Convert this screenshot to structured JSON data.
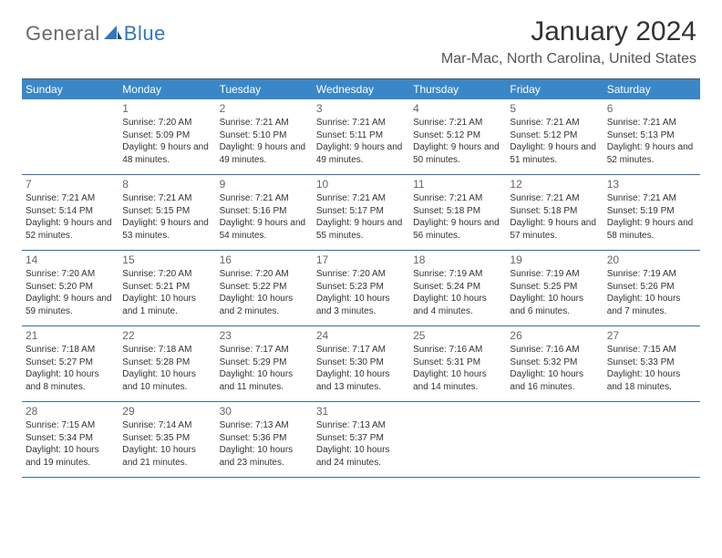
{
  "colors": {
    "header_bg": "#3a87c8",
    "header_text": "#ffffff",
    "week_divider": "#3a6fa0",
    "top_rule": "#5a5a5a",
    "body_text": "#333333",
    "daynum_text": "#666666",
    "logo_grey": "#6a6a6a",
    "logo_blue": "#2f78bd",
    "background": "#ffffff"
  },
  "fonts": {
    "month_title_size": 30,
    "location_size": 16,
    "day_header_size": 12,
    "daynum_size": 12,
    "cell_text_size": 10,
    "logo_size": 22
  },
  "logo": {
    "part1": "General",
    "part2": "Blue"
  },
  "title": "January 2024",
  "location": "Mar-Mac, North Carolina, United States",
  "day_headers": [
    "Sunday",
    "Monday",
    "Tuesday",
    "Wednesday",
    "Thursday",
    "Friday",
    "Saturday"
  ],
  "weeks": [
    [
      {
        "num": "",
        "lines": []
      },
      {
        "num": "1",
        "lines": [
          "Sunrise: 7:20 AM",
          "Sunset: 5:09 PM",
          "Daylight: 9 hours and 48 minutes."
        ]
      },
      {
        "num": "2",
        "lines": [
          "Sunrise: 7:21 AM",
          "Sunset: 5:10 PM",
          "Daylight: 9 hours and 49 minutes."
        ]
      },
      {
        "num": "3",
        "lines": [
          "Sunrise: 7:21 AM",
          "Sunset: 5:11 PM",
          "Daylight: 9 hours and 49 minutes."
        ]
      },
      {
        "num": "4",
        "lines": [
          "Sunrise: 7:21 AM",
          "Sunset: 5:12 PM",
          "Daylight: 9 hours and 50 minutes."
        ]
      },
      {
        "num": "5",
        "lines": [
          "Sunrise: 7:21 AM",
          "Sunset: 5:12 PM",
          "Daylight: 9 hours and 51 minutes."
        ]
      },
      {
        "num": "6",
        "lines": [
          "Sunrise: 7:21 AM",
          "Sunset: 5:13 PM",
          "Daylight: 9 hours and 52 minutes."
        ]
      }
    ],
    [
      {
        "num": "7",
        "lines": [
          "Sunrise: 7:21 AM",
          "Sunset: 5:14 PM",
          "Daylight: 9 hours and 52 minutes."
        ]
      },
      {
        "num": "8",
        "lines": [
          "Sunrise: 7:21 AM",
          "Sunset: 5:15 PM",
          "Daylight: 9 hours and 53 minutes."
        ]
      },
      {
        "num": "9",
        "lines": [
          "Sunrise: 7:21 AM",
          "Sunset: 5:16 PM",
          "Daylight: 9 hours and 54 minutes."
        ]
      },
      {
        "num": "10",
        "lines": [
          "Sunrise: 7:21 AM",
          "Sunset: 5:17 PM",
          "Daylight: 9 hours and 55 minutes."
        ]
      },
      {
        "num": "11",
        "lines": [
          "Sunrise: 7:21 AM",
          "Sunset: 5:18 PM",
          "Daylight: 9 hours and 56 minutes."
        ]
      },
      {
        "num": "12",
        "lines": [
          "Sunrise: 7:21 AM",
          "Sunset: 5:18 PM",
          "Daylight: 9 hours and 57 minutes."
        ]
      },
      {
        "num": "13",
        "lines": [
          "Sunrise: 7:21 AM",
          "Sunset: 5:19 PM",
          "Daylight: 9 hours and 58 minutes."
        ]
      }
    ],
    [
      {
        "num": "14",
        "lines": [
          "Sunrise: 7:20 AM",
          "Sunset: 5:20 PM",
          "Daylight: 9 hours and 59 minutes."
        ]
      },
      {
        "num": "15",
        "lines": [
          "Sunrise: 7:20 AM",
          "Sunset: 5:21 PM",
          "Daylight: 10 hours and 1 minute."
        ]
      },
      {
        "num": "16",
        "lines": [
          "Sunrise: 7:20 AM",
          "Sunset: 5:22 PM",
          "Daylight: 10 hours and 2 minutes."
        ]
      },
      {
        "num": "17",
        "lines": [
          "Sunrise: 7:20 AM",
          "Sunset: 5:23 PM",
          "Daylight: 10 hours and 3 minutes."
        ]
      },
      {
        "num": "18",
        "lines": [
          "Sunrise: 7:19 AM",
          "Sunset: 5:24 PM",
          "Daylight: 10 hours and 4 minutes."
        ]
      },
      {
        "num": "19",
        "lines": [
          "Sunrise: 7:19 AM",
          "Sunset: 5:25 PM",
          "Daylight: 10 hours and 6 minutes."
        ]
      },
      {
        "num": "20",
        "lines": [
          "Sunrise: 7:19 AM",
          "Sunset: 5:26 PM",
          "Daylight: 10 hours and 7 minutes."
        ]
      }
    ],
    [
      {
        "num": "21",
        "lines": [
          "Sunrise: 7:18 AM",
          "Sunset: 5:27 PM",
          "Daylight: 10 hours and 8 minutes."
        ]
      },
      {
        "num": "22",
        "lines": [
          "Sunrise: 7:18 AM",
          "Sunset: 5:28 PM",
          "Daylight: 10 hours and 10 minutes."
        ]
      },
      {
        "num": "23",
        "lines": [
          "Sunrise: 7:17 AM",
          "Sunset: 5:29 PM",
          "Daylight: 10 hours and 11 minutes."
        ]
      },
      {
        "num": "24",
        "lines": [
          "Sunrise: 7:17 AM",
          "Sunset: 5:30 PM",
          "Daylight: 10 hours and 13 minutes."
        ]
      },
      {
        "num": "25",
        "lines": [
          "Sunrise: 7:16 AM",
          "Sunset: 5:31 PM",
          "Daylight: 10 hours and 14 minutes."
        ]
      },
      {
        "num": "26",
        "lines": [
          "Sunrise: 7:16 AM",
          "Sunset: 5:32 PM",
          "Daylight: 10 hours and 16 minutes."
        ]
      },
      {
        "num": "27",
        "lines": [
          "Sunrise: 7:15 AM",
          "Sunset: 5:33 PM",
          "Daylight: 10 hours and 18 minutes."
        ]
      }
    ],
    [
      {
        "num": "28",
        "lines": [
          "Sunrise: 7:15 AM",
          "Sunset: 5:34 PM",
          "Daylight: 10 hours and 19 minutes."
        ]
      },
      {
        "num": "29",
        "lines": [
          "Sunrise: 7:14 AM",
          "Sunset: 5:35 PM",
          "Daylight: 10 hours and 21 minutes."
        ]
      },
      {
        "num": "30",
        "lines": [
          "Sunrise: 7:13 AM",
          "Sunset: 5:36 PM",
          "Daylight: 10 hours and 23 minutes."
        ]
      },
      {
        "num": "31",
        "lines": [
          "Sunrise: 7:13 AM",
          "Sunset: 5:37 PM",
          "Daylight: 10 hours and 24 minutes."
        ]
      },
      {
        "num": "",
        "lines": []
      },
      {
        "num": "",
        "lines": []
      },
      {
        "num": "",
        "lines": []
      }
    ]
  ]
}
